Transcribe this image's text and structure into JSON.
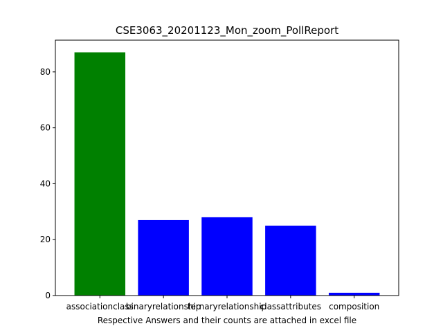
{
  "chart_data": {
    "type": "bar",
    "title": "CSE3063_20201123_Mon_zoom_PollReport",
    "xlabel": "Respective Answers and their counts are attached in excel file",
    "ylabel": "",
    "categories": [
      "associationclass",
      "binaryrelationship",
      "ternaryrelationship",
      "classattributes",
      "composition"
    ],
    "values": [
      87,
      27,
      28,
      25,
      1
    ],
    "bar_colors": [
      "#008000",
      "#0000ff",
      "#0000ff",
      "#0000ff",
      "#0000ff"
    ],
    "ylim": [
      0,
      91.35
    ],
    "yticks": [
      0,
      20,
      40,
      60,
      80
    ],
    "grid": false,
    "legend": "none"
  }
}
